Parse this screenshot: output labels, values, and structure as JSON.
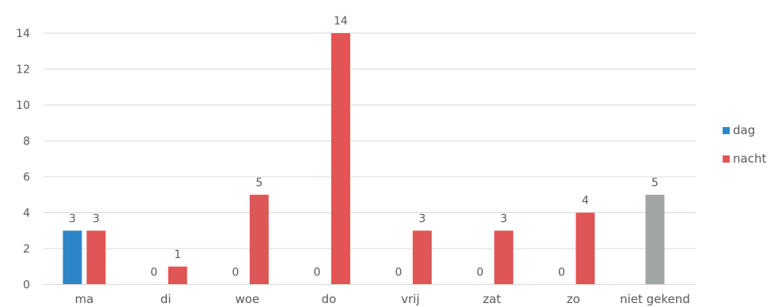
{
  "chart_data": {
    "type": "bar",
    "categories": [
      "ma",
      "di",
      "woe",
      "do",
      "vrij",
      "zat",
      "zo",
      "niet gekend"
    ],
    "series": [
      {
        "name": "dag",
        "values": [
          3,
          0,
          0,
          0,
          0,
          0,
          0,
          null
        ],
        "color": "#2e86c8",
        "labels": [
          "3",
          "0",
          "0",
          "0",
          "0",
          "0",
          "0",
          ""
        ]
      },
      {
        "name": "nacht",
        "values": [
          3,
          1,
          5,
          14,
          3,
          3,
          4,
          null
        ],
        "color": "#e05555",
        "labels": [
          "3",
          "1",
          "5",
          "14",
          "3",
          "3",
          "4",
          ""
        ]
      }
    ],
    "unlabeled_bar": {
      "category": "niet gekend",
      "value": 5,
      "label": "5",
      "color": "#a2a5a6"
    },
    "ylim": [
      0,
      14
    ],
    "yticks": [
      0,
      2,
      4,
      6,
      8,
      10,
      12,
      14
    ],
    "grid": true,
    "legend_position": "right",
    "title": "",
    "xlabel": "",
    "ylabel": ""
  }
}
